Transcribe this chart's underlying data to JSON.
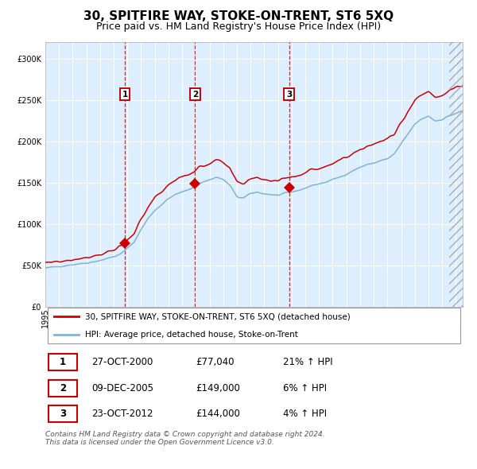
{
  "title": "30, SPITFIRE WAY, STOKE-ON-TRENT, ST6 5XQ",
  "subtitle": "Price paid vs. HM Land Registry's House Price Index (HPI)",
  "legend_line1": "30, SPITFIRE WAY, STOKE-ON-TRENT, ST6 5XQ (detached house)",
  "legend_line2": "HPI: Average price, detached house, Stoke-on-Trent",
  "red_color": "#cc0000",
  "blue_color": "#7eb4d4",
  "plot_bg": "#ddeeff",
  "grid_color": "#ffffff",
  "transactions": [
    {
      "num": 1,
      "date": "27-OCT-2000",
      "price": 77040,
      "price_str": "£77,040",
      "pct": "21%",
      "direction": "↑"
    },
    {
      "num": 2,
      "date": "09-DEC-2005",
      "price": 149000,
      "price_str": "£149,000",
      "pct": "6%",
      "direction": "↑"
    },
    {
      "num": 3,
      "date": "23-OCT-2012",
      "price": 144000,
      "price_str": "£144,000",
      "pct": "4%",
      "direction": "↑"
    }
  ],
  "transaction_dates_decimal": [
    2000.82,
    2005.94,
    2012.81
  ],
  "ylim": [
    0,
    320000
  ],
  "yticks": [
    0,
    50000,
    100000,
    150000,
    200000,
    250000,
    300000
  ],
  "footnote_line1": "Contains HM Land Registry data © Crown copyright and database right 2024.",
  "footnote_line2": "This data is licensed under the Open Government Licence v3.0.",
  "start_year": 1995.0,
  "end_year": 2025.5,
  "hpi_key_points": [
    [
      1995.0,
      47000
    ],
    [
      1996.0,
      49500
    ],
    [
      1997.0,
      51500
    ],
    [
      1998.0,
      53500
    ],
    [
      1999.0,
      56500
    ],
    [
      2000.0,
      61000
    ],
    [
      2000.5,
      64000
    ],
    [
      2001.0,
      71000
    ],
    [
      2001.5,
      79000
    ],
    [
      2002.0,
      94000
    ],
    [
      2002.5,
      107000
    ],
    [
      2003.0,
      117000
    ],
    [
      2003.5,
      124000
    ],
    [
      2004.0,
      131000
    ],
    [
      2004.5,
      136000
    ],
    [
      2005.0,
      139000
    ],
    [
      2005.5,
      142000
    ],
    [
      2006.0,
      147000
    ],
    [
      2006.5,
      151000
    ],
    [
      2007.0,
      154000
    ],
    [
      2007.5,
      157000
    ],
    [
      2008.0,
      154000
    ],
    [
      2008.5,
      147000
    ],
    [
      2009.0,
      133000
    ],
    [
      2009.5,
      132000
    ],
    [
      2010.0,
      137000
    ],
    [
      2010.5,
      139000
    ],
    [
      2011.0,
      137000
    ],
    [
      2011.5,
      136000
    ],
    [
      2012.0,
      135000
    ],
    [
      2012.5,
      137000
    ],
    [
      2013.0,
      139000
    ],
    [
      2013.5,
      141000
    ],
    [
      2014.0,
      144000
    ],
    [
      2014.5,
      147000
    ],
    [
      2015.0,
      149000
    ],
    [
      2015.5,
      151000
    ],
    [
      2016.0,
      154000
    ],
    [
      2016.5,
      157000
    ],
    [
      2017.0,
      161000
    ],
    [
      2017.5,
      165000
    ],
    [
      2018.0,
      169000
    ],
    [
      2018.5,
      172000
    ],
    [
      2019.0,
      174000
    ],
    [
      2019.5,
      177000
    ],
    [
      2020.0,
      179000
    ],
    [
      2020.5,
      185000
    ],
    [
      2021.0,
      197000
    ],
    [
      2021.5,
      209000
    ],
    [
      2022.0,
      221000
    ],
    [
      2022.5,
      227000
    ],
    [
      2023.0,
      231000
    ],
    [
      2023.5,
      225000
    ],
    [
      2024.0,
      227000
    ],
    [
      2024.5,
      231000
    ],
    [
      2025.0,
      234000
    ],
    [
      2025.5,
      237000
    ]
  ],
  "red_scale": 1.13,
  "hpi_noise_seed": 42,
  "hpi_noise_std": 1100,
  "red_noise_seed": 77,
  "red_noise_std": 1600
}
